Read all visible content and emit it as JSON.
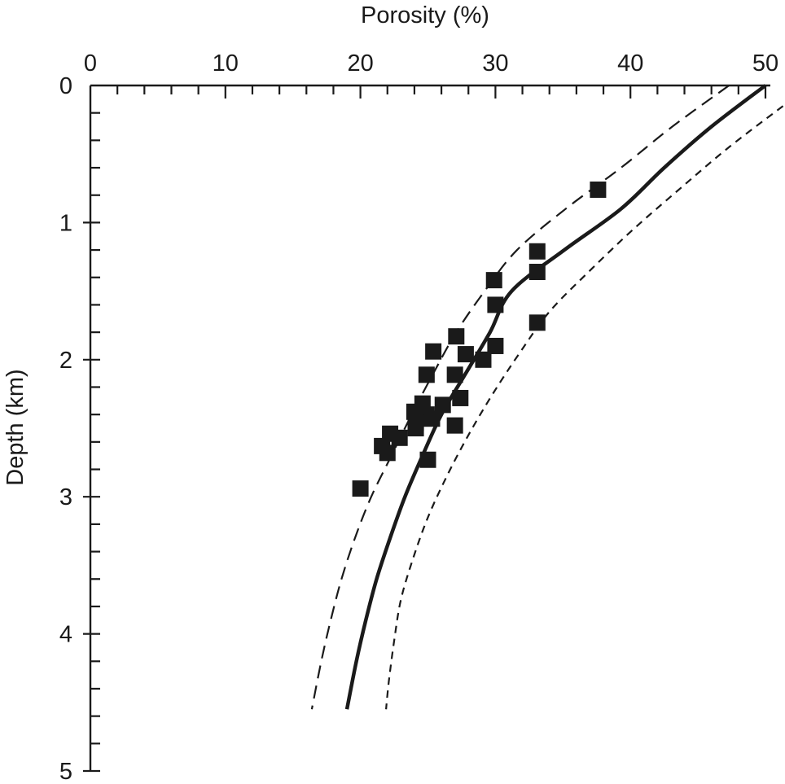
{
  "chart_data": {
    "type": "scatter",
    "title": "",
    "xlabel": "Porosity  (%)",
    "ylabel": "Depth (km)",
    "x_axis_position": "top",
    "y_axis_inverted": true,
    "xlim": [
      0,
      50
    ],
    "ylim": [
      0,
      5
    ],
    "x_ticks": [
      0,
      10,
      20,
      30,
      40,
      50
    ],
    "y_ticks": [
      0,
      1,
      2,
      3,
      4,
      5
    ],
    "x_tick_labels": [
      "0",
      "10",
      "20",
      "30",
      "40",
      "50"
    ],
    "y_tick_labels": [
      "0",
      "1",
      "2",
      "3",
      "4",
      "5"
    ],
    "x_minor_step": 2,
    "y_minor_step": 0.2,
    "grid": false,
    "legend": "none",
    "series": [
      {
        "kind": "points",
        "marker": "square",
        "color": "#1a1a1a",
        "points": [
          {
            "x": 37.6,
            "y": 0.76
          },
          {
            "x": 33.1,
            "y": 1.21
          },
          {
            "x": 33.1,
            "y": 1.36
          },
          {
            "x": 29.9,
            "y": 1.42
          },
          {
            "x": 30.0,
            "y": 1.6
          },
          {
            "x": 33.1,
            "y": 1.73
          },
          {
            "x": 27.1,
            "y": 1.83
          },
          {
            "x": 30.0,
            "y": 1.9
          },
          {
            "x": 25.4,
            "y": 1.94
          },
          {
            "x": 27.8,
            "y": 1.96
          },
          {
            "x": 29.1,
            "y": 2.0
          },
          {
            "x": 24.9,
            "y": 2.11
          },
          {
            "x": 27.0,
            "y": 2.11
          },
          {
            "x": 27.4,
            "y": 2.28
          },
          {
            "x": 24.6,
            "y": 2.32
          },
          {
            "x": 26.1,
            "y": 2.33
          },
          {
            "x": 24.0,
            "y": 2.38
          },
          {
            "x": 24.9,
            "y": 2.4
          },
          {
            "x": 25.3,
            "y": 2.43
          },
          {
            "x": 24.1,
            "y": 2.46
          },
          {
            "x": 27.0,
            "y": 2.48
          },
          {
            "x": 24.1,
            "y": 2.5
          },
          {
            "x": 22.2,
            "y": 2.54
          },
          {
            "x": 22.9,
            "y": 2.57
          },
          {
            "x": 21.6,
            "y": 2.63
          },
          {
            "x": 22.0,
            "y": 2.68
          },
          {
            "x": 25.0,
            "y": 2.73
          },
          {
            "x": 20.0,
            "y": 2.94
          }
        ]
      },
      {
        "kind": "line",
        "style": "solid",
        "points": [
          {
            "x": 50.0,
            "y": 0.0
          },
          {
            "x": 46.0,
            "y": 0.3
          },
          {
            "x": 42.5,
            "y": 0.6
          },
          {
            "x": 39.3,
            "y": 0.9
          },
          {
            "x": 35.1,
            "y": 1.2
          },
          {
            "x": 31.2,
            "y": 1.5
          },
          {
            "x": 29.6,
            "y": 1.8
          },
          {
            "x": 27.8,
            "y": 2.1
          },
          {
            "x": 26.0,
            "y": 2.4
          },
          {
            "x": 24.6,
            "y": 2.7
          },
          {
            "x": 23.3,
            "y": 3.0
          },
          {
            "x": 22.2,
            "y": 3.3
          },
          {
            "x": 21.2,
            "y": 3.6
          },
          {
            "x": 20.4,
            "y": 3.9
          },
          {
            "x": 19.7,
            "y": 4.2
          },
          {
            "x": 19.0,
            "y": 4.55
          }
        ]
      },
      {
        "kind": "line",
        "style": "long-dash",
        "points": [
          {
            "x": 47.3,
            "y": 0.0
          },
          {
            "x": 43.1,
            "y": 0.3
          },
          {
            "x": 39.3,
            "y": 0.6
          },
          {
            "x": 35.2,
            "y": 0.9
          },
          {
            "x": 31.6,
            "y": 1.2
          },
          {
            "x": 29.2,
            "y": 1.5
          },
          {
            "x": 27.1,
            "y": 1.8
          },
          {
            "x": 25.4,
            "y": 2.1
          },
          {
            "x": 23.8,
            "y": 2.4
          },
          {
            "x": 22.3,
            "y": 2.7
          },
          {
            "x": 20.8,
            "y": 3.0
          },
          {
            "x": 19.6,
            "y": 3.3
          },
          {
            "x": 18.6,
            "y": 3.6
          },
          {
            "x": 17.8,
            "y": 3.9
          },
          {
            "x": 17.1,
            "y": 4.2
          },
          {
            "x": 16.4,
            "y": 4.55
          }
        ]
      },
      {
        "kind": "line",
        "style": "short-dash",
        "points": [
          {
            "x": 51.3,
            "y": 0.15
          },
          {
            "x": 47.3,
            "y": 0.45
          },
          {
            "x": 43.7,
            "y": 0.75
          },
          {
            "x": 40.2,
            "y": 1.05
          },
          {
            "x": 37.0,
            "y": 1.35
          },
          {
            "x": 34.0,
            "y": 1.65
          },
          {
            "x": 31.8,
            "y": 1.95
          },
          {
            "x": 29.8,
            "y": 2.25
          },
          {
            "x": 28.0,
            "y": 2.55
          },
          {
            "x": 26.4,
            "y": 2.85
          },
          {
            "x": 25.0,
            "y": 3.15
          },
          {
            "x": 23.9,
            "y": 3.45
          },
          {
            "x": 23.0,
            "y": 3.75
          },
          {
            "x": 22.5,
            "y": 4.05
          },
          {
            "x": 22.1,
            "y": 4.35
          },
          {
            "x": 21.9,
            "y": 4.55
          }
        ]
      }
    ]
  }
}
